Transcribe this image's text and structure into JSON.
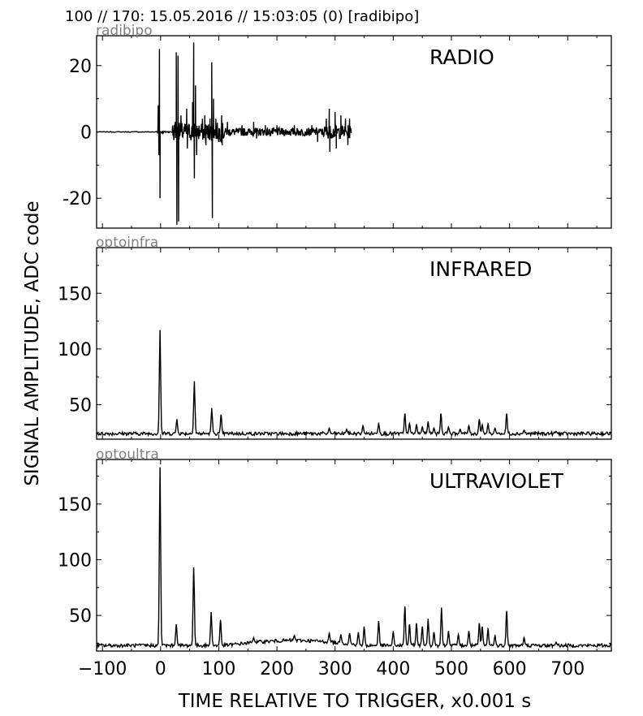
{
  "header": "100 // 170:   15.05.2016 // 15:03:05 (0)  [radibipo]",
  "ylabel": "SIGNAL AMPLITUDE,  ADC code",
  "xlabel": "TIME RELATIVE TO TRIGGER,   x0.001 s",
  "colors": {
    "line": "#000000",
    "corner_label": "#808080",
    "background": "#ffffff"
  },
  "chart_data": [
    {
      "type": "line",
      "corner_label": "radibipo",
      "title": "RADIO",
      "xlim": [
        -110,
        775
      ],
      "ylim": [
        -29,
        29
      ],
      "yticks": [
        -20,
        0,
        20
      ],
      "ytick_labels": [
        "-20",
        "0",
        "20"
      ],
      "series": [
        {
          "style": "bipolar-bursts",
          "x_end": 328,
          "baseline": 0,
          "peaks": [
            {
              "x": -4,
              "y": 8
            },
            {
              "x": -3,
              "y": -7
            },
            {
              "x": -2,
              "y": 25
            },
            {
              "x": -1,
              "y": -20
            },
            {
              "x": 25,
              "y": 3
            },
            {
              "x": 27,
              "y": 24
            },
            {
              "x": 28,
              "y": -28
            },
            {
              "x": 30,
              "y": 23
            },
            {
              "x": 31,
              "y": -27
            },
            {
              "x": 35,
              "y": 5
            },
            {
              "x": 45,
              "y": 7
            },
            {
              "x": 46,
              "y": -5
            },
            {
              "x": 55,
              "y": 9
            },
            {
              "x": 57,
              "y": 27
            },
            {
              "x": 58,
              "y": -14
            },
            {
              "x": 60,
              "y": 14
            },
            {
              "x": 62,
              "y": -7
            },
            {
              "x": 72,
              "y": 4
            },
            {
              "x": 76,
              "y": 5
            },
            {
              "x": 78,
              "y": -4
            },
            {
              "x": 85,
              "y": 4
            },
            {
              "x": 88,
              "y": 21
            },
            {
              "x": 89,
              "y": -26
            },
            {
              "x": 91,
              "y": 10
            },
            {
              "x": 95,
              "y": 4
            },
            {
              "x": 100,
              "y": -3
            },
            {
              "x": 105,
              "y": 5
            },
            {
              "x": 106,
              "y": -4
            },
            {
              "x": 115,
              "y": 3
            },
            {
              "x": 140,
              "y": 2
            },
            {
              "x": 160,
              "y": 3
            },
            {
              "x": 165,
              "y": -2
            },
            {
              "x": 180,
              "y": 2
            },
            {
              "x": 200,
              "y": 2
            },
            {
              "x": 230,
              "y": 2
            },
            {
              "x": 260,
              "y": 2
            },
            {
              "x": 270,
              "y": -3
            },
            {
              "x": 285,
              "y": 4
            },
            {
              "x": 290,
              "y": 7
            },
            {
              "x": 291,
              "y": -6
            },
            {
              "x": 300,
              "y": 6
            },
            {
              "x": 302,
              "y": -5
            },
            {
              "x": 310,
              "y": 5
            },
            {
              "x": 318,
              "y": 4
            },
            {
              "x": 322,
              "y": -4
            },
            {
              "x": 325,
              "y": 4
            }
          ]
        }
      ]
    },
    {
      "type": "line",
      "corner_label": "optoinfra",
      "title": "INFRARED",
      "xlim": [
        -110,
        775
      ],
      "ylim": [
        19,
        191
      ],
      "yticks": [
        50,
        100,
        150
      ],
      "ytick_labels": [
        "50",
        "100",
        "150"
      ],
      "series": [
        {
          "style": "spikes",
          "baseline": 24,
          "peaks": [
            {
              "x": -1,
              "y": 117
            },
            {
              "x": 28,
              "y": 37
            },
            {
              "x": 58,
              "y": 71
            },
            {
              "x": 88,
              "y": 47
            },
            {
              "x": 104,
              "y": 41
            },
            {
              "x": 290,
              "y": 29
            },
            {
              "x": 320,
              "y": 28
            },
            {
              "x": 348,
              "y": 31
            },
            {
              "x": 375,
              "y": 33
            },
            {
              "x": 420,
              "y": 42
            },
            {
              "x": 428,
              "y": 33
            },
            {
              "x": 440,
              "y": 32
            },
            {
              "x": 450,
              "y": 30
            },
            {
              "x": 460,
              "y": 35
            },
            {
              "x": 470,
              "y": 29
            },
            {
              "x": 482,
              "y": 42
            },
            {
              "x": 495,
              "y": 30
            },
            {
              "x": 515,
              "y": 28
            },
            {
              "x": 530,
              "y": 31
            },
            {
              "x": 548,
              "y": 37
            },
            {
              "x": 553,
              "y": 32
            },
            {
              "x": 563,
              "y": 33
            },
            {
              "x": 575,
              "y": 29
            },
            {
              "x": 595,
              "y": 42
            },
            {
              "x": 625,
              "y": 27
            },
            {
              "x": 680,
              "y": 26
            }
          ]
        }
      ]
    },
    {
      "type": "line",
      "corner_label": "optoultra",
      "title": "ULTRAVIOLET",
      "xlim": [
        -110,
        775
      ],
      "ylim": [
        18,
        190
      ],
      "yticks": [
        50,
        100,
        150
      ],
      "ytick_labels": [
        "50",
        "100",
        "150"
      ],
      "xticks": [
        -100,
        0,
        100,
        200,
        300,
        400,
        500,
        600,
        700
      ],
      "xtick_labels": [
        "−100",
        "0",
        "100",
        "200",
        "300",
        "400",
        "500",
        "600",
        "700"
      ],
      "series": [
        {
          "style": "spikes",
          "baseline": 23,
          "hump": {
            "from": 110,
            "to": 420,
            "top": 28
          },
          "peaks": [
            {
              "x": -1,
              "y": 183
            },
            {
              "x": 27,
              "y": 42
            },
            {
              "x": 57,
              "y": 93
            },
            {
              "x": 87,
              "y": 53
            },
            {
              "x": 103,
              "y": 46
            },
            {
              "x": 160,
              "y": 30
            },
            {
              "x": 230,
              "y": 32
            },
            {
              "x": 290,
              "y": 34
            },
            {
              "x": 310,
              "y": 33
            },
            {
              "x": 325,
              "y": 34
            },
            {
              "x": 340,
              "y": 35
            },
            {
              "x": 350,
              "y": 40
            },
            {
              "x": 375,
              "y": 45
            },
            {
              "x": 400,
              "y": 36
            },
            {
              "x": 420,
              "y": 58
            },
            {
              "x": 428,
              "y": 42
            },
            {
              "x": 440,
              "y": 43
            },
            {
              "x": 450,
              "y": 40
            },
            {
              "x": 460,
              "y": 47
            },
            {
              "x": 470,
              "y": 35
            },
            {
              "x": 483,
              "y": 57
            },
            {
              "x": 495,
              "y": 36
            },
            {
              "x": 512,
              "y": 33
            },
            {
              "x": 530,
              "y": 36
            },
            {
              "x": 548,
              "y": 43
            },
            {
              "x": 553,
              "y": 40
            },
            {
              "x": 563,
              "y": 38
            },
            {
              "x": 575,
              "y": 32
            },
            {
              "x": 595,
              "y": 54
            },
            {
              "x": 625,
              "y": 30
            },
            {
              "x": 680,
              "y": 26
            }
          ]
        }
      ]
    }
  ]
}
